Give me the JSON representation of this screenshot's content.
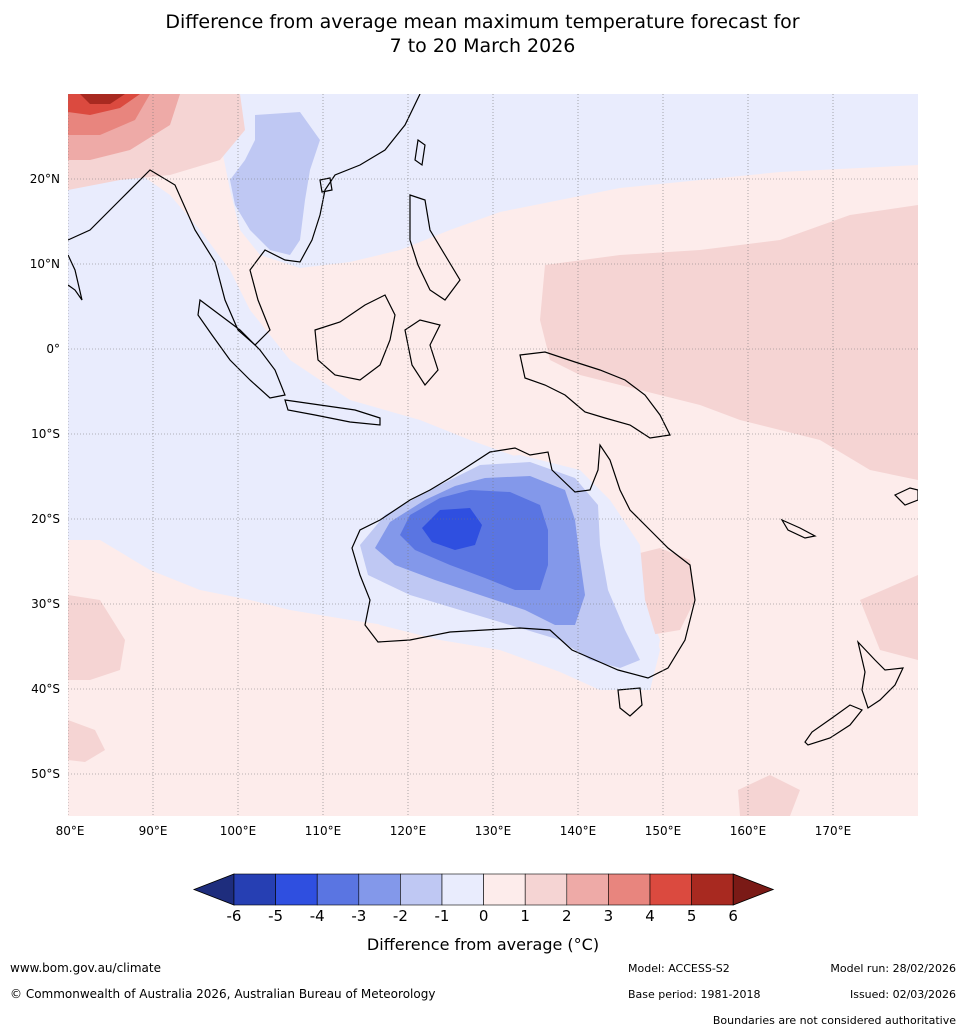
{
  "title_line1": "Difference from average mean maximum temperature forecast for",
  "title_line2": "7 to 20 March 2026",
  "lat_labels": [
    "20°N",
    "10°N",
    "0°",
    "10°S",
    "20°S",
    "30°S",
    "40°S",
    "50°S"
  ],
  "lon_labels": [
    "80°E",
    "90°E",
    "100°E",
    "110°E",
    "120°E",
    "130°E",
    "140°E",
    "150°E",
    "160°E",
    "170°E"
  ],
  "colorbar": {
    "ticks": [
      "-6",
      "-5",
      "-4",
      "-3",
      "-2",
      "-1",
      "0",
      "1",
      "2",
      "3",
      "4",
      "5",
      "6"
    ],
    "colors": [
      "#263fb3",
      "#2f4fe0",
      "#5a75e2",
      "#8398ea",
      "#bfc8f3",
      "#e9ecfd",
      "#fdeceb",
      "#f5d4d3",
      "#eeaaa7",
      "#e8857e",
      "#db4a3f",
      "#a82920"
    ],
    "under_color": "#1e2d7d",
    "over_color": "#7a1a16",
    "label": "Difference from average (°C)"
  },
  "footer": {
    "url": "www.bom.gov.au/climate",
    "copyright": "© Commonwealth of Australia 2026, Australian Bureau of Meteorology",
    "model": "Model: ACCESS-S2",
    "base_period": "Base period: 1981-2018",
    "model_run": "Model run: 28/02/2026",
    "issued": "Issued: 02/03/2026",
    "disclaimer": "Boundaries are not considered authoritative"
  }
}
